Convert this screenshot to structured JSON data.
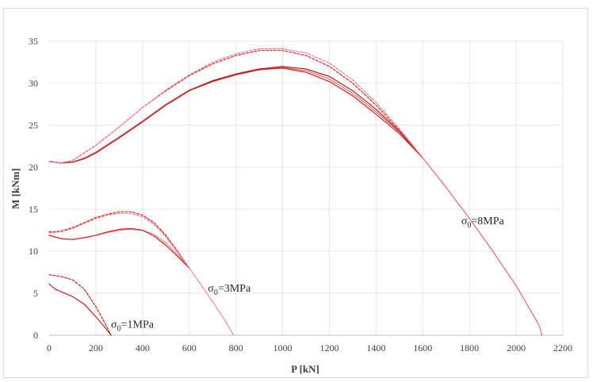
{
  "chart_data": {
    "type": "line",
    "xlabel": "P [kN]",
    "ylabel": "M [kNm]",
    "xlim": [
      0,
      2200
    ],
    "ylim": [
      0,
      35
    ],
    "xticks": [
      0,
      200,
      400,
      600,
      800,
      1000,
      1200,
      1400,
      1600,
      1800,
      2000,
      2200
    ],
    "yticks": [
      0,
      5,
      10,
      15,
      20,
      25,
      30,
      35
    ],
    "grid": true,
    "annotations": [
      {
        "symbol": "σ",
        "sub": "0",
        "text": "=8MPa",
        "x": 1765,
        "y": 13.2
      },
      {
        "symbol": "σ",
        "sub": "0",
        "text": "=3MPa",
        "x": 680,
        "y": 5.2
      },
      {
        "symbol": "σ",
        "sub": "0",
        "text": "=1MPa",
        "x": 265,
        "y": 0.9
      }
    ],
    "series": [
      {
        "group": "8MPa",
        "style": "solid",
        "color": "#e8686e",
        "x": [
          0,
          50,
          100,
          150,
          200,
          300,
          400,
          500,
          600,
          700,
          800,
          900,
          1000,
          1100,
          1200,
          1300,
          1400,
          1500,
          1600,
          1700,
          1800,
          1900,
          2000,
          2100,
          2110
        ],
        "y": [
          20.7,
          20.5,
          20.6,
          21.1,
          21.8,
          23.6,
          25.5,
          27.5,
          29.2,
          30.3,
          31.1,
          31.7,
          31.9,
          31.5,
          30.5,
          28.8,
          26.6,
          24.2,
          21.1,
          17.6,
          13.9,
          10.0,
          5.9,
          1.1,
          0
        ]
      },
      {
        "group": "8MPa",
        "style": "solid",
        "color": "#cc1f1f",
        "x": [
          0,
          50,
          100,
          150,
          200,
          300,
          400,
          500,
          600,
          700,
          800,
          900,
          1000,
          1100,
          1200,
          1300,
          1400,
          1500,
          1600
        ],
        "y": [
          20.7,
          20.5,
          20.6,
          21.0,
          21.7,
          23.5,
          25.4,
          27.4,
          29.1,
          30.2,
          31.0,
          31.6,
          31.8,
          31.3,
          30.2,
          28.5,
          26.3,
          24.0,
          21.1
        ]
      },
      {
        "group": "8MPa",
        "style": "solid",
        "color": "#b22222",
        "x": [
          0,
          50,
          100,
          150,
          200,
          300,
          400,
          500,
          600,
          700,
          800,
          900,
          1000,
          1100,
          1200,
          1300,
          1400,
          1500,
          1600
        ],
        "y": [
          20.7,
          20.5,
          20.6,
          21.0,
          21.7,
          23.5,
          25.4,
          27.4,
          29.1,
          30.3,
          31.1,
          31.7,
          32.0,
          31.7,
          30.8,
          29.1,
          26.9,
          24.3,
          21.1
        ]
      },
      {
        "group": "8MPa",
        "style": "dashed",
        "color": "#d6262c",
        "x": [
          0,
          50,
          100,
          150,
          200,
          300,
          400,
          500,
          600,
          700,
          800,
          900,
          1000,
          1100,
          1200,
          1300,
          1400,
          1500,
          1600
        ],
        "y": [
          20.7,
          20.5,
          20.8,
          21.7,
          22.6,
          24.8,
          27.1,
          29.1,
          30.9,
          32.3,
          33.3,
          33.9,
          33.9,
          33.3,
          32.0,
          30.0,
          27.4,
          24.4,
          21.1
        ]
      },
      {
        "group": "8MPa",
        "style": "dashed",
        "color": "#ef7c82",
        "x": [
          0,
          50,
          100,
          150,
          200,
          300,
          400,
          500,
          600,
          700,
          800,
          900,
          1000,
          1100,
          1200,
          1300,
          1400,
          1500,
          1600
        ],
        "y": [
          20.7,
          20.5,
          20.8,
          21.7,
          22.6,
          24.8,
          27.1,
          29.2,
          31.0,
          32.5,
          33.5,
          34.1,
          34.1,
          33.6,
          32.4,
          30.4,
          27.7,
          24.6,
          21.1
        ]
      },
      {
        "group": "3MPa",
        "style": "solid",
        "color": "#f08c8c",
        "x": [
          0,
          50,
          100,
          150,
          200,
          250,
          300,
          350,
          400,
          450,
          500,
          550,
          600,
          650,
          700,
          750,
          790
        ],
        "y": [
          11.9,
          11.5,
          11.4,
          11.6,
          11.9,
          12.2,
          12.5,
          12.6,
          12.5,
          12.0,
          11.0,
          9.6,
          8.0,
          6.0,
          4.0,
          1.9,
          0
        ]
      },
      {
        "group": "3MPa",
        "style": "solid",
        "color": "#cc1f1f",
        "x": [
          0,
          50,
          100,
          150,
          200,
          250,
          300,
          350,
          400,
          450,
          500,
          550,
          600
        ],
        "y": [
          11.9,
          11.5,
          11.4,
          11.6,
          11.9,
          12.3,
          12.6,
          12.7,
          12.5,
          11.8,
          10.7,
          9.4,
          8.0
        ]
      },
      {
        "group": "3MPa",
        "style": "dashed",
        "color": "#d6262c",
        "x": [
          0,
          50,
          100,
          150,
          200,
          250,
          300,
          350,
          400,
          450,
          500,
          550,
          600
        ],
        "y": [
          12.3,
          12.4,
          12.8,
          13.4,
          14.0,
          14.4,
          14.7,
          14.7,
          14.3,
          13.4,
          11.9,
          10.0,
          8.0
        ]
      },
      {
        "group": "3MPa",
        "style": "dashed",
        "color": "#ef7c82",
        "x": [
          0,
          50,
          100,
          150,
          200,
          250,
          300,
          350,
          400,
          450,
          500,
          550,
          600
        ],
        "y": [
          12.2,
          12.3,
          12.7,
          13.3,
          13.9,
          14.3,
          14.5,
          14.5,
          14.1,
          13.2,
          11.7,
          9.9,
          8.0
        ]
      },
      {
        "group": "1MPa",
        "style": "solid",
        "color": "#cc1f1f",
        "x": [
          0,
          25,
          50,
          100,
          150,
          200,
          240,
          265
        ],
        "y": [
          6.1,
          5.5,
          5.2,
          4.6,
          3.7,
          2.2,
          0.9,
          0
        ]
      },
      {
        "group": "1MPa",
        "style": "dashed",
        "color": "#cc1f1f",
        "x": [
          0,
          50,
          100,
          150,
          200,
          240,
          265
        ],
        "y": [
          7.2,
          7.0,
          6.6,
          5.5,
          3.4,
          1.4,
          0
        ]
      }
    ]
  }
}
